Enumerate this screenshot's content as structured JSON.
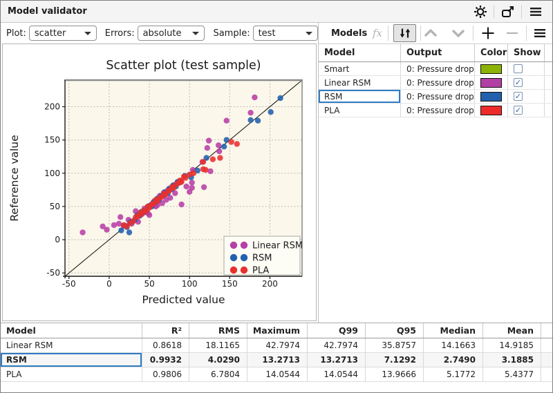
{
  "window": {
    "title": "Model validator",
    "icons": [
      "settings-icon",
      "popout-icon",
      "menu-icon"
    ]
  },
  "toolbar": {
    "plot": {
      "label": "Plot:",
      "value": "scatter"
    },
    "errors": {
      "label": "Errors:",
      "value": "absolute"
    },
    "sample": {
      "label": "Sample:",
      "value": "test"
    }
  },
  "models_panel": {
    "title": "Models",
    "fx_label": "fx",
    "toolbar_icons": [
      "function-icon",
      "sort-icon",
      "move-up-icon",
      "move-down-icon",
      "add-icon",
      "remove-icon",
      "menu-icon"
    ],
    "columns": [
      "Model",
      "Output",
      "Color",
      "Show"
    ],
    "rows": [
      {
        "model": "Smart",
        "output": "0: Pressure drop",
        "color": "#8cb204",
        "show": false,
        "selected": false
      },
      {
        "model": "Linear RSM",
        "output": "0: Pressure drop",
        "color": "#b23fa4",
        "show": true,
        "selected": false
      },
      {
        "model": "RSM",
        "output": "0: Pressure drop",
        "color": "#2060ac",
        "show": true,
        "selected": true
      },
      {
        "model": "PLA",
        "output": "0: Pressure drop",
        "color": "#ee2b2b",
        "show": true,
        "selected": false
      }
    ]
  },
  "chart_data": {
    "type": "scatter",
    "title": "Scatter plot (test sample)",
    "xlabel": "Predicted value",
    "ylabel": "Reference value",
    "xlim": [
      -55,
      240
    ],
    "ylim": [
      -55,
      240
    ],
    "ticks": [
      -50,
      0,
      50,
      100,
      150,
      200
    ],
    "grid": true,
    "identity_line": true,
    "plot_bg": "#fbf7ea",
    "legend_position": "bottom-right",
    "series": [
      {
        "name": "Linear RSM",
        "color": "#b73fa6",
        "points": [
          [
            -33,
            11
          ],
          [
            -8,
            20
          ],
          [
            -3,
            15
          ],
          [
            6,
            22
          ],
          [
            12,
            24
          ],
          [
            14,
            34
          ],
          [
            18,
            21
          ],
          [
            24,
            30
          ],
          [
            28,
            24
          ],
          [
            33,
            43
          ],
          [
            36,
            27
          ],
          [
            40,
            38
          ],
          [
            44,
            47
          ],
          [
            48,
            40
          ],
          [
            50,
            37
          ],
          [
            52,
            52
          ],
          [
            56,
            58
          ],
          [
            58,
            50
          ],
          [
            60,
            52
          ],
          [
            63,
            66
          ],
          [
            66,
            55
          ],
          [
            68,
            71
          ],
          [
            71,
            60
          ],
          [
            74,
            76
          ],
          [
            76,
            63
          ],
          [
            79,
            81
          ],
          [
            82,
            70
          ],
          [
            85,
            86
          ],
          [
            89,
            89
          ],
          [
            90,
            53
          ],
          [
            96,
            80
          ],
          [
            100,
            72
          ],
          [
            103,
            78
          ],
          [
            103,
            86
          ],
          [
            104,
            105
          ],
          [
            116,
            117
          ],
          [
            118,
            79
          ],
          [
            122,
            138
          ],
          [
            124,
            149
          ],
          [
            126,
            103
          ],
          [
            136,
            142
          ],
          [
            137,
            133
          ],
          [
            146,
            179
          ],
          [
            176,
            191
          ],
          [
            181,
            214
          ]
        ]
      },
      {
        "name": "RSM",
        "color": "#2161ae",
        "points": [
          [
            15,
            14
          ],
          [
            20,
            21
          ],
          [
            22,
            19
          ],
          [
            25,
            11
          ],
          [
            26,
            26
          ],
          [
            28,
            27
          ],
          [
            32,
            30
          ],
          [
            35,
            37
          ],
          [
            38,
            36
          ],
          [
            40,
            42
          ],
          [
            43,
            41
          ],
          [
            45,
            44
          ],
          [
            48,
            49
          ],
          [
            50,
            51
          ],
          [
            53,
            50
          ],
          [
            55,
            56
          ],
          [
            58,
            57
          ],
          [
            60,
            62
          ],
          [
            62,
            60
          ],
          [
            65,
            66
          ],
          [
            68,
            67
          ],
          [
            70,
            72
          ],
          [
            73,
            70
          ],
          [
            75,
            77
          ],
          [
            78,
            76
          ],
          [
            80,
            82
          ],
          [
            83,
            80
          ],
          [
            85,
            87
          ],
          [
            88,
            86
          ],
          [
            94,
            96
          ],
          [
            102,
            94
          ],
          [
            110,
            104
          ],
          [
            121,
            123
          ],
          [
            143,
            140
          ],
          [
            146,
            150
          ],
          [
            176,
            180
          ],
          [
            185,
            179
          ],
          [
            201,
            192
          ],
          [
            213,
            213
          ]
        ]
      },
      {
        "name": "PLA",
        "color": "#e8302e",
        "points": [
          [
            18,
            22
          ],
          [
            22,
            20
          ],
          [
            26,
            25
          ],
          [
            30,
            28
          ],
          [
            33,
            34
          ],
          [
            36,
            35
          ],
          [
            38,
            40
          ],
          [
            41,
            39
          ],
          [
            43,
            44
          ],
          [
            46,
            43
          ],
          [
            48,
            50
          ],
          [
            50,
            48
          ],
          [
            53,
            53
          ],
          [
            55,
            54
          ],
          [
            58,
            60
          ],
          [
            60,
            58
          ],
          [
            63,
            63
          ],
          [
            65,
            64
          ],
          [
            68,
            69
          ],
          [
            70,
            68
          ],
          [
            73,
            73
          ],
          [
            75,
            74
          ],
          [
            78,
            79
          ],
          [
            80,
            78
          ],
          [
            83,
            83
          ],
          [
            86,
            85
          ],
          [
            88,
            89
          ],
          [
            90,
            87
          ],
          [
            93,
            95
          ],
          [
            95,
            93
          ],
          [
            100,
            98
          ],
          [
            105,
            100
          ],
          [
            117,
            106
          ],
          [
            117,
            117
          ],
          [
            120,
            105
          ],
          [
            129,
            121
          ],
          [
            138,
            123
          ],
          [
            152,
            147
          ],
          [
            159,
            144
          ]
        ]
      }
    ]
  },
  "stats_table": {
    "columns": [
      "Model",
      "R²",
      "RMS",
      "Maximum",
      "Q99",
      "Q95",
      "Median",
      "Mean"
    ],
    "rows": [
      {
        "model": "Linear RSM",
        "values": [
          "0.8618",
          "18.1165",
          "42.7974",
          "42.7974",
          "35.8757",
          "14.1663",
          "14.9185"
        ],
        "selected": false
      },
      {
        "model": "RSM",
        "values": [
          "0.9932",
          "4.0290",
          "13.2713",
          "13.2713",
          "7.1292",
          "2.7490",
          "3.1885"
        ],
        "selected": true
      },
      {
        "model": "PLA",
        "values": [
          "0.9806",
          "6.7804",
          "14.0544",
          "14.0544",
          "13.9666",
          "5.1772",
          "5.4377"
        ],
        "selected": false
      }
    ]
  },
  "colors": {
    "selection_accent": "#2e7cc3",
    "titlebar_bg": "#f4f4f4",
    "plot_background": "#fbf7ea"
  }
}
